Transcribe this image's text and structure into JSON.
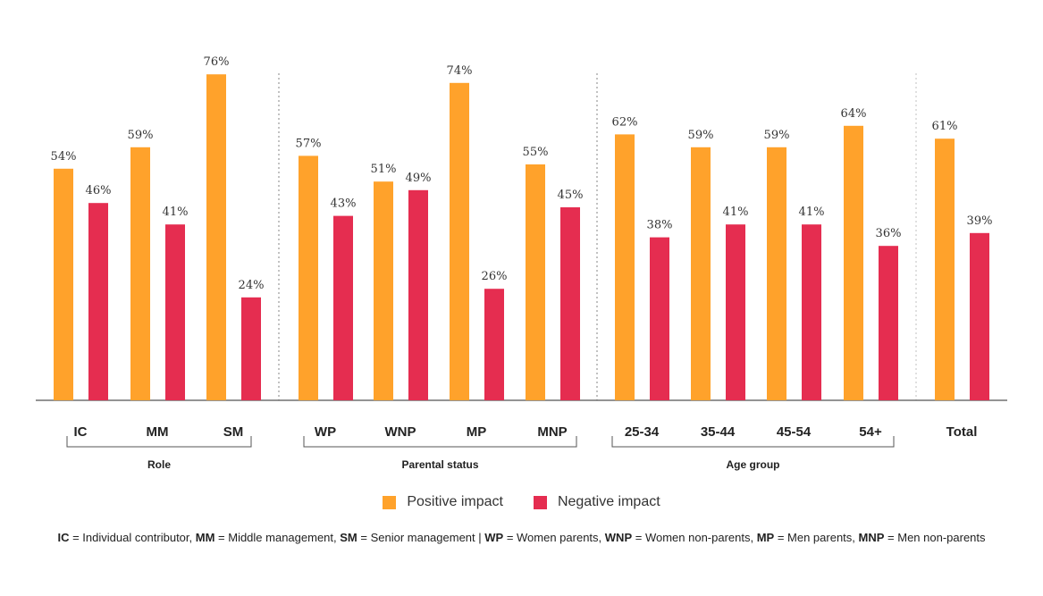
{
  "colors": {
    "positive": "#FFA22B",
    "negative": "#E52D50",
    "axis": "#555555",
    "separator": "#999999"
  },
  "legend": {
    "positive_label": "Positive impact",
    "negative_label": "Negative impact"
  },
  "footnote": [
    {
      "abbr": "IC",
      "text": " = Individual contributor,  "
    },
    {
      "abbr": "MM",
      "text": " = Middle management, "
    },
    {
      "abbr": "SM",
      "text": " = Senior management | "
    },
    {
      "abbr": "WP",
      "text": " = Women parents, "
    },
    {
      "abbr": "WNP",
      "text": " = Women non-parents, "
    },
    {
      "abbr": "MP",
      "text": " = Men parents, "
    },
    {
      "abbr": "MNP",
      "text": " = Men non-parents"
    }
  ],
  "chart_data": {
    "type": "bar",
    "ylim": [
      0,
      80
    ],
    "value_suffix": "%",
    "groups": [
      {
        "label": "Role",
        "categories": [
          "IC",
          "MM",
          "SM"
        ]
      },
      {
        "label": "Parental status",
        "categories": [
          "WP",
          "WNP",
          "MP",
          "MNP"
        ]
      },
      {
        "label": "Age group",
        "categories": [
          "25-34",
          "35-44",
          "45-54",
          "54+"
        ]
      },
      {
        "label": "",
        "categories": [
          "Total"
        ]
      }
    ],
    "categories": [
      "IC",
      "MM",
      "SM",
      "WP",
      "WNP",
      "MP",
      "MNP",
      "25-34",
      "35-44",
      "45-54",
      "54+",
      "Total"
    ],
    "series": [
      {
        "name": "Positive impact",
        "values": [
          54,
          59,
          76,
          57,
          51,
          74,
          55,
          62,
          59,
          59,
          64,
          61
        ]
      },
      {
        "name": "Negative impact",
        "values": [
          46,
          41,
          24,
          43,
          49,
          26,
          45,
          38,
          41,
          41,
          36,
          39
        ]
      }
    ],
    "legend_position": "bottom",
    "grid": false
  }
}
